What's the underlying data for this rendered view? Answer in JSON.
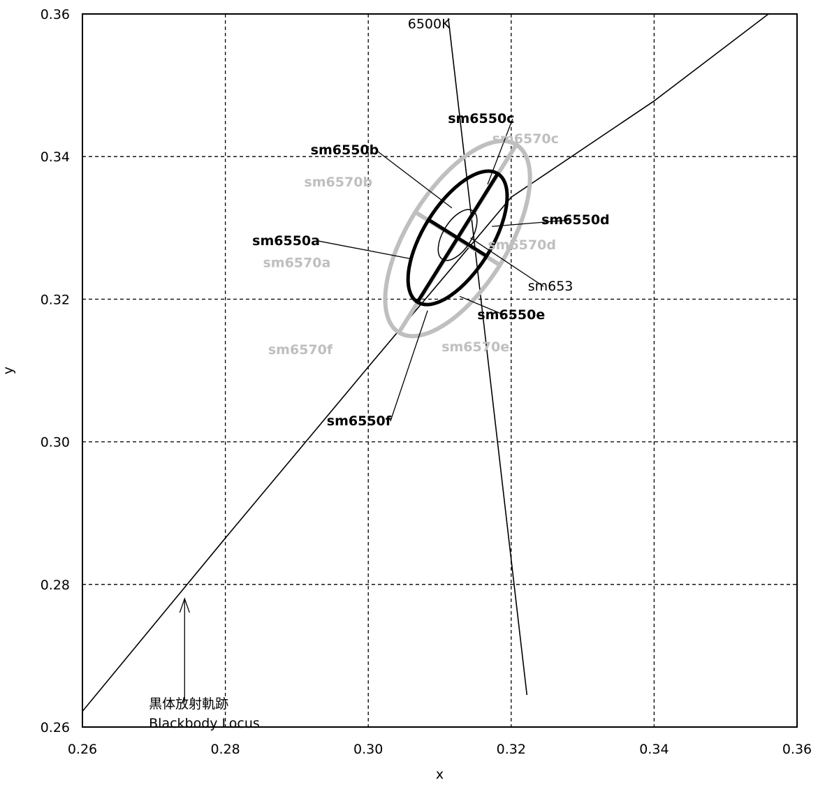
{
  "chart_data": {
    "type": "line",
    "title": "",
    "xlabel": "x",
    "ylabel": "y",
    "xlim": [
      0.26,
      0.36
    ],
    "ylim": [
      0.26,
      0.36
    ],
    "xticks": [
      "0.26",
      "0.28",
      "0.30",
      "0.32",
      "0.34",
      "0.36"
    ],
    "yticks": [
      "0.26",
      "0.28",
      "0.30",
      "0.32",
      "0.34",
      "0.36"
    ],
    "grid": "dashed",
    "colors": {
      "black": "#000000",
      "gray": "#bfbfbf"
    },
    "blackbody_locus": {
      "label_line1": "黒体放射軌跡",
      "label_line2": "Blackbody Locus",
      "points": [
        [
          0.26,
          0.2622
        ],
        [
          0.28,
          0.2865
        ],
        [
          0.3,
          0.3105
        ],
        [
          0.32,
          0.3343
        ],
        [
          0.34,
          0.3478
        ],
        [
          0.356,
          0.36
        ]
      ]
    },
    "isotemperature_6500K": {
      "label": "6500K",
      "points": [
        [
          0.3112,
          0.3594
        ],
        [
          0.3222,
          0.2645
        ]
      ]
    },
    "ellipses": [
      {
        "name": "sm653",
        "center": [
          0.3125,
          0.329
        ],
        "a": 0.004,
        "b": 0.002,
        "angle_deg": 58,
        "color": "#000000",
        "width": 1.5
      },
      {
        "name": "sm6550",
        "center": [
          0.3125,
          0.3286
        ],
        "a": 0.0106,
        "b": 0.0048,
        "angle_deg": 58,
        "color": "#000000",
        "width": 5
      },
      {
        "name": "sm6570",
        "center": [
          0.3125,
          0.3285
        ],
        "a": 0.0155,
        "b": 0.007,
        "angle_deg": 58,
        "color": "#bfbfbf",
        "width": 6
      }
    ],
    "labels": [
      {
        "text": "sm6550a",
        "style": "bold",
        "color": "#000000",
        "pos": [
          0.2885,
          0.3276
        ],
        "anchor": [
          0.3058,
          0.3257
        ]
      },
      {
        "text": "sm6550b",
        "style": "bold",
        "color": "#000000",
        "pos": [
          0.2967,
          0.3403
        ],
        "anchor": [
          0.3117,
          0.3328
        ]
      },
      {
        "text": "sm6550c",
        "style": "bold",
        "color": "#000000",
        "pos": [
          0.3158,
          0.3447
        ],
        "anchor": [
          0.3167,
          0.3361
        ]
      },
      {
        "text": "sm6550d",
        "style": "bold",
        "color": "#000000",
        "pos": [
          0.329,
          0.3305
        ],
        "anchor": [
          0.3173,
          0.3302
        ]
      },
      {
        "text": "sm6550e",
        "style": "bold",
        "color": "#000000",
        "pos": [
          0.32,
          0.3172
        ],
        "anchor": [
          0.3128,
          0.3204
        ]
      },
      {
        "text": "sm6550f",
        "style": "bold",
        "color": "#000000",
        "pos": [
          0.2987,
          0.3023
        ],
        "anchor": [
          0.3083,
          0.3184
        ]
      },
      {
        "text": "sm6570a",
        "style": "bold",
        "color": "#bfbfbf",
        "pos": [
          0.29,
          0.3245
        ],
        "anchor": null
      },
      {
        "text": "sm6570b",
        "style": "bold",
        "color": "#bfbfbf",
        "pos": [
          0.2958,
          0.3358
        ],
        "anchor": null
      },
      {
        "text": "sm6570c",
        "style": "bold",
        "color": "#bfbfbf",
        "pos": [
          0.322,
          0.3419
        ],
        "anchor": null
      },
      {
        "text": "sm6570d",
        "style": "bold",
        "color": "#bfbfbf",
        "pos": [
          0.3215,
          0.327
        ],
        "anchor": null
      },
      {
        "text": "sm6570e",
        "style": "bold",
        "color": "#bfbfbf",
        "pos": [
          0.315,
          0.3127
        ],
        "anchor": null
      },
      {
        "text": "sm6570f",
        "style": "bold",
        "color": "#bfbfbf",
        "pos": [
          0.2905,
          0.3123
        ],
        "anchor": null
      },
      {
        "text": "sm653",
        "style": "normal",
        "color": "#000000",
        "pos": [
          0.3255,
          0.3212
        ],
        "anchor": [
          0.3143,
          0.3286
        ]
      }
    ]
  }
}
